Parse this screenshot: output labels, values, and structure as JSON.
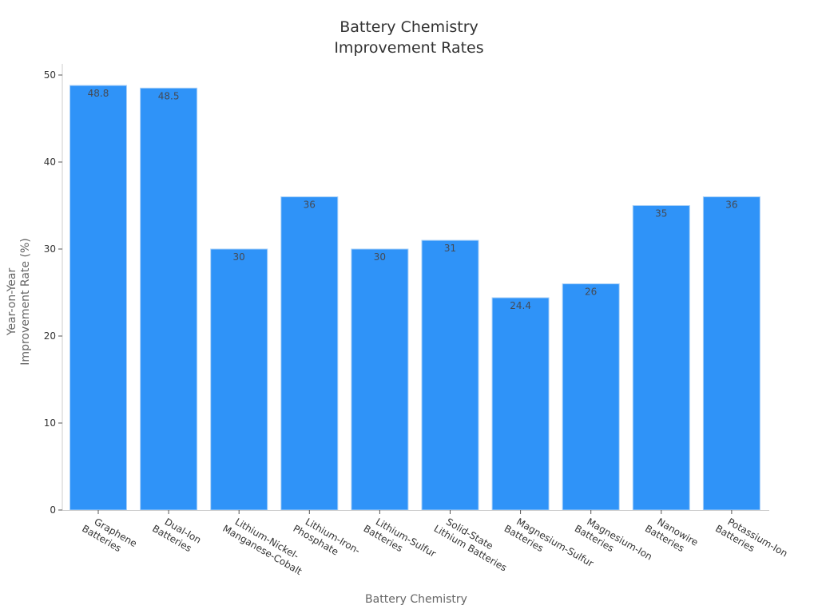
{
  "chart_data": {
    "type": "bar",
    "title": "Battery Chemistry\nImprovement Rates",
    "title_lines": [
      "Battery Chemistry",
      "Improvement Rates"
    ],
    "xlabel": "Battery Chemistry",
    "ylabel": "Year-on-Year\nImprovement Rate (%)",
    "ylabel_lines": [
      "Year-on-Year",
      "Improvement Rate (%)"
    ],
    "categories": [
      "Graphene Batteries",
      "Dual-Ion Batteries",
      "Lithium-Nickel-Manganese-Cobalt",
      "Lithium-Iron-Phosphate",
      "Lithium-Sulfur Batteries",
      "Solid-State Lithium Batteries",
      "Magnesium-Sulfur Batteries",
      "Magnesium-Ion Batteries",
      "Nanowire Batteries",
      "Potassium-Ion Batteries"
    ],
    "category_lines": [
      [
        "Graphene",
        "Batteries"
      ],
      [
        "Dual-Ion",
        "Batteries"
      ],
      [
        "Lithium-Nickel-",
        "Manganese-Cobalt"
      ],
      [
        "Lithium-Iron-",
        "Phosphate"
      ],
      [
        "Lithium-Sulfur",
        "Batteries"
      ],
      [
        "Solid-State",
        "Lithium Batteries"
      ],
      [
        "Magnesium-Sulfur",
        "Batteries"
      ],
      [
        "Magnesium-Ion",
        "Batteries"
      ],
      [
        "Nanowire",
        "Batteries"
      ],
      [
        "Potassium-Ion",
        "Batteries"
      ]
    ],
    "values": [
      48.8,
      48.5,
      30,
      36,
      30,
      31,
      24.4,
      26,
      35,
      36
    ],
    "value_labels": [
      "48.8",
      "48.5",
      "30",
      "36",
      "30",
      "31",
      "24.4",
      "26",
      "35",
      "36"
    ],
    "yticks": [
      0,
      10,
      20,
      30,
      40,
      50
    ],
    "ylim": [
      0,
      51.3
    ],
    "grid": false,
    "legend": null,
    "colors": {
      "bar": "#2f93f8",
      "bar_edge": "#a9d0f7",
      "axis": "#cccccc"
    }
  }
}
